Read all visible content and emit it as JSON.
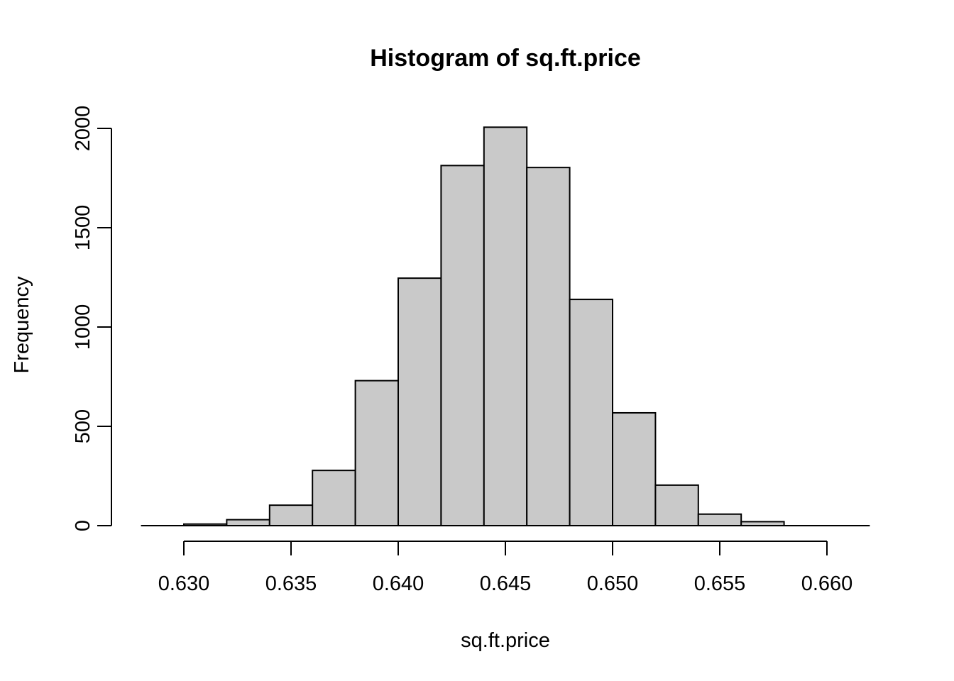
{
  "chart_data": {
    "type": "bar",
    "subtype": "histogram",
    "title": "Histogram of sq.ft.price",
    "xlabel": "sq.ft.price",
    "ylabel": "Frequency",
    "bin_start": 0.63,
    "bin_width": 0.002,
    "bin_edges": [
      0.63,
      0.632,
      0.634,
      0.636,
      0.638,
      0.64,
      0.642,
      0.644,
      0.646,
      0.648,
      0.65,
      0.652,
      0.654,
      0.656,
      0.658
    ],
    "counts": [
      8,
      30,
      103,
      278,
      730,
      1246,
      1813,
      2006,
      1803,
      1139,
      568,
      204,
      58,
      20
    ],
    "x_ticks": [
      0.63,
      0.635,
      0.64,
      0.645,
      0.65,
      0.655,
      0.66
    ],
    "x_tick_labels": [
      "0.630",
      "0.635",
      "0.640",
      "0.645",
      "0.650",
      "0.655",
      "0.660"
    ],
    "y_ticks": [
      0,
      500,
      1000,
      1500,
      2000
    ],
    "y_tick_labels": [
      "0",
      "500",
      "1000",
      "1500",
      "2000"
    ],
    "xlim": [
      0.628,
      0.662
    ],
    "ylim": [
      0,
      2000
    ],
    "grid": false,
    "legend": null,
    "colors": {
      "bar_fill": "#C9C9C9",
      "bar_stroke": "#000000",
      "axis": "#000000",
      "text": "#000000",
      "background": "#FFFFFF"
    }
  }
}
